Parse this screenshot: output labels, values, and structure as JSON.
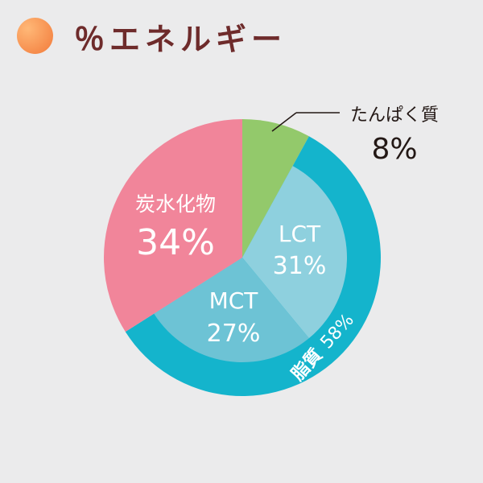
{
  "title": "％エネルギー",
  "chart_data": {
    "type": "pie",
    "slices": [
      {
        "name": "たんぱく質",
        "value": 8,
        "label": "8%",
        "color": "#93c96b"
      },
      {
        "name": "脂質",
        "value": 58,
        "label": "58%",
        "color": "#14b4cc",
        "sub": [
          {
            "name": "LCT",
            "value": 31,
            "label": "31%",
            "color": "#8ed0de"
          },
          {
            "name": "MCT",
            "value": 27,
            "label": "27%",
            "color": "#6dc3d5"
          }
        ]
      },
      {
        "name": "炭水化物",
        "value": 34,
        "label": "34%",
        "color": "#f1859a"
      }
    ],
    "start": "top",
    "direction": "clockwise"
  },
  "accent_colors": {
    "title": "#6e2b2b",
    "title_dot": "#f4884a"
  }
}
